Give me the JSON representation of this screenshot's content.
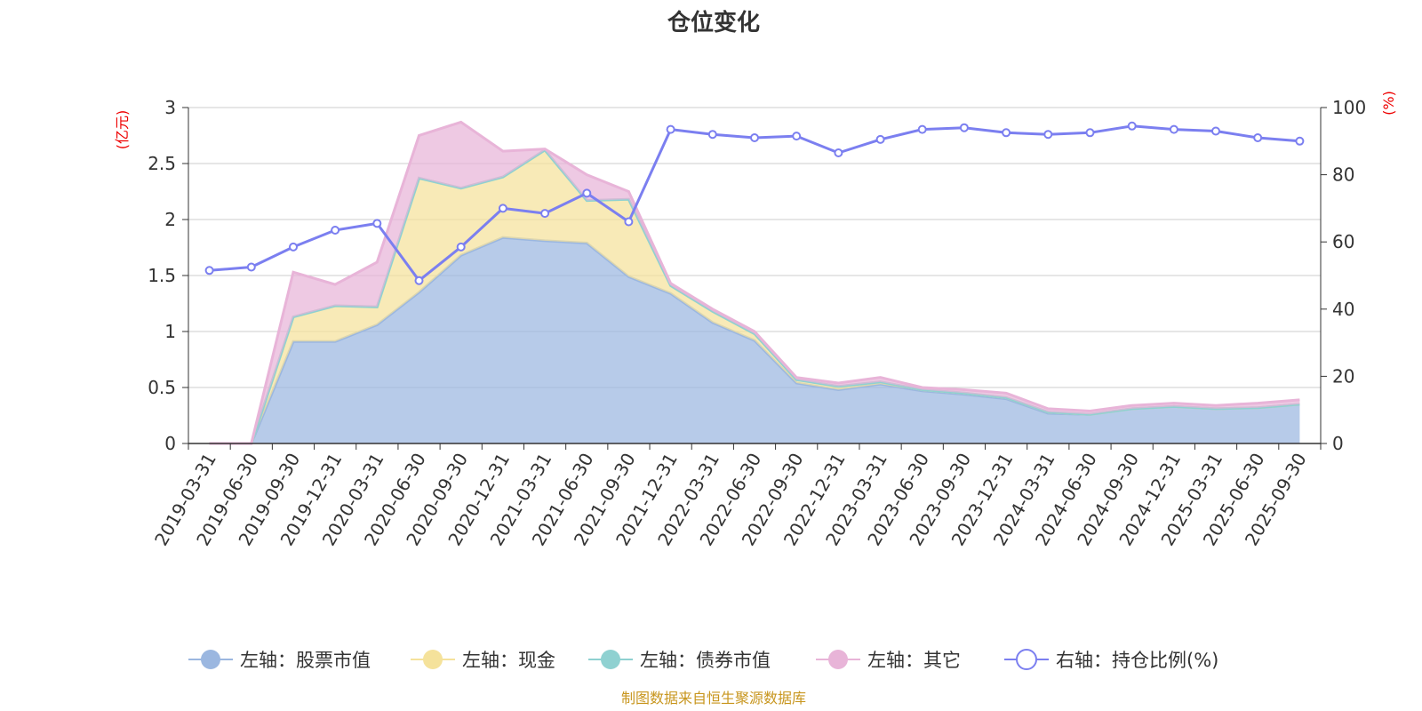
{
  "chart_data": {
    "type": "area",
    "title": "仓位变化",
    "y_left_unit": "(亿元)",
    "y_right_unit": "(%)",
    "y_left_ticks": [
      "0",
      "0.5",
      "1",
      "1.5",
      "2",
      "2.5",
      "3"
    ],
    "y_right_ticks": [
      "0",
      "20",
      "40",
      "60",
      "80",
      "100"
    ],
    "ylim_left": [
      0,
      3
    ],
    "ylim_right": [
      0,
      100
    ],
    "x": [
      "2019-03-31",
      "2019-06-30",
      "2019-09-30",
      "2019-12-31",
      "2020-03-31",
      "2020-06-30",
      "2020-09-30",
      "2020-12-31",
      "2021-03-31",
      "2021-06-30",
      "2021-09-30",
      "2021-12-31",
      "2022-03-31",
      "2022-06-30",
      "2022-09-30",
      "2022-12-31",
      "2023-03-31",
      "2023-06-30",
      "2023-09-30",
      "2023-12-31",
      "2024-03-31",
      "2024-06-30",
      "2024-09-30",
      "2024-12-31",
      "2025-03-31",
      "2025-06-30",
      "2025-09-30"
    ],
    "series": [
      {
        "name": "左轴：股票市值",
        "axis": "left",
        "kind": "stacked-area",
        "color": "#9bb7e0",
        "values": [
          0,
          0,
          0.91,
          0.91,
          1.06,
          1.35,
          1.68,
          1.84,
          1.81,
          1.79,
          1.49,
          1.34,
          1.08,
          0.92,
          0.54,
          0.48,
          0.53,
          0.47,
          0.44,
          0.4,
          0.27,
          0.26,
          0.31,
          0.33,
          0.31,
          0.32,
          0.35
        ]
      },
      {
        "name": "左轴：现金",
        "axis": "left",
        "kind": "stacked-area",
        "color": "#f5e29b",
        "values": [
          0,
          0,
          0.22,
          0.32,
          0.16,
          1.02,
          0.6,
          0.54,
          0.81,
          0.38,
          0.69,
          0.07,
          0.1,
          0.06,
          0.03,
          0.03,
          0.02,
          0.01,
          0.01,
          0.01,
          0.01,
          0.0,
          0.0,
          0.0,
          0.0,
          0.0,
          0.0
        ]
      },
      {
        "name": "左轴：债券市值",
        "axis": "left",
        "kind": "stacked-area",
        "color": "#8fd1d1",
        "values": [
          0,
          0,
          0,
          0,
          0,
          0,
          0,
          0,
          0,
          0,
          0,
          0,
          0,
          0,
          0,
          0,
          0,
          0,
          0,
          0,
          0,
          0,
          0,
          0,
          0,
          0,
          0
        ]
      },
      {
        "name": "左轴：其它",
        "axis": "left",
        "kind": "stacked-area",
        "color": "#e8b4d8",
        "values": [
          0,
          0,
          0.4,
          0.19,
          0.4,
          0.38,
          0.59,
          0.23,
          0.01,
          0.23,
          0.07,
          0.02,
          0.02,
          0.02,
          0.02,
          0.03,
          0.04,
          0.02,
          0.03,
          0.04,
          0.03,
          0.03,
          0.03,
          0.03,
          0.03,
          0.04,
          0.04
        ]
      },
      {
        "name": "右轴：持仓比例(%)",
        "axis": "right",
        "kind": "line",
        "color": "#7b7ff0",
        "values": [
          51.5,
          52.5,
          58.5,
          63.5,
          65.5,
          48.5,
          58.5,
          70,
          68.5,
          74.5,
          66,
          93.5,
          92,
          91,
          91.5,
          86.5,
          90.5,
          93.5,
          94,
          92.5,
          92,
          92.5,
          94.5,
          93.5,
          93,
          91,
          90
        ]
      }
    ],
    "legend_position": "bottom-center",
    "grid": true,
    "source_note": "制图数据来自恒生聚源数据库"
  }
}
